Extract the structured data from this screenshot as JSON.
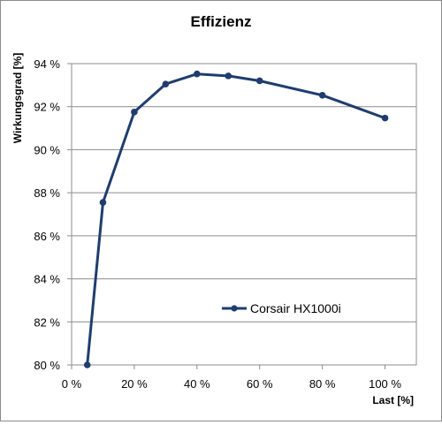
{
  "chart_data": {
    "type": "line",
    "title": "Effizienz",
    "xlabel": "Last [%]",
    "ylabel": "Wirkungsgrad [%]",
    "xlim": [
      0,
      110
    ],
    "ylim": [
      80,
      94
    ],
    "x_ticks": [
      0,
      20,
      40,
      60,
      80,
      100
    ],
    "y_ticks": [
      80,
      82,
      84,
      86,
      88,
      90,
      92,
      94
    ],
    "x_tick_labels": [
      "0 %",
      "20 %",
      "40 %",
      "60 %",
      "80 %",
      "100 %"
    ],
    "y_tick_labels": [
      "80 %",
      "82 %",
      "84 %",
      "86 %",
      "88 %",
      "90 %",
      "92 %",
      "94 %"
    ],
    "grid": "horizontal",
    "legend_position": "inside-bottom-right",
    "series": [
      {
        "name": "Corsair HX1000i",
        "color": "#1f3d6e",
        "x": [
          5,
          10,
          20,
          30,
          40,
          50,
          60,
          80,
          100
        ],
        "y": [
          80.0,
          87.55,
          91.75,
          93.05,
          93.52,
          93.43,
          93.2,
          92.53,
          91.47
        ]
      }
    ]
  }
}
